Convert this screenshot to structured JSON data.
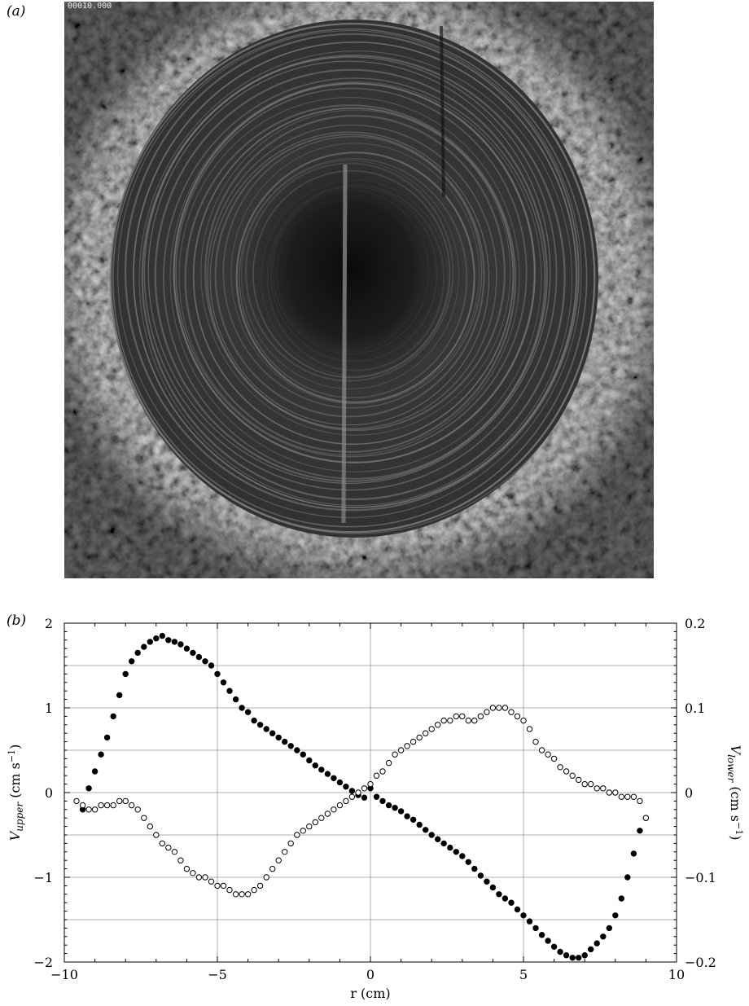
{
  "figure": {
    "panel_a_label": "(a)",
    "panel_b_label": "(b)",
    "photo_stamp": "00010.000"
  },
  "chart_data": {
    "type": "scatter",
    "title": "",
    "xlabel": "r (cm)",
    "ylabel_left": {
      "base": "V",
      "sub": "upper",
      "unit": " (cm s",
      "sup": "−1",
      "close": ")"
    },
    "ylabel_right": {
      "base": "V",
      "sub": "lower",
      "unit": " (cm s",
      "sup": "−1",
      "close": ")"
    },
    "xlim": [
      -10,
      10
    ],
    "ylim_left": [
      -2,
      2
    ],
    "ylim_right": [
      -0.2,
      0.2
    ],
    "x_ticks": [
      -10,
      -5,
      0,
      5,
      10
    ],
    "x_tick_labels": [
      "−10",
      "−5",
      "0",
      "5",
      "10"
    ],
    "y_left_ticks": [
      -2,
      -1,
      0,
      1,
      2
    ],
    "y_left_tick_labels": [
      "−2",
      "−1",
      "0",
      "1",
      "2"
    ],
    "y_right_ticks": [
      -0.2,
      -0.1,
      0,
      0.1,
      0.2
    ],
    "y_right_tick_labels": [
      "−0.2",
      "−0.1",
      "0",
      "0.1",
      "0.2"
    ],
    "grid": true,
    "series": [
      {
        "marker": "filled-circle",
        "axis": "left",
        "x": [
          -9.4,
          -9.2,
          -9.0,
          -8.8,
          -8.6,
          -8.4,
          -8.2,
          -8.0,
          -7.8,
          -7.6,
          -7.4,
          -7.2,
          -7.0,
          -6.8,
          -6.6,
          -6.4,
          -6.2,
          -6.0,
          -5.8,
          -5.6,
          -5.4,
          -5.2,
          -5.0,
          -4.8,
          -4.6,
          -4.4,
          -4.2,
          -4.0,
          -3.8,
          -3.6,
          -3.4,
          -3.2,
          -3.0,
          -2.8,
          -2.6,
          -2.4,
          -2.2,
          -2.0,
          -1.8,
          -1.6,
          -1.4,
          -1.2,
          -1.0,
          -0.8,
          -0.6,
          -0.4,
          -0.2,
          0.0,
          0.2,
          0.4,
          0.6,
          0.8,
          1.0,
          1.2,
          1.4,
          1.6,
          1.8,
          2.0,
          2.2,
          2.4,
          2.6,
          2.8,
          3.0,
          3.2,
          3.4,
          3.6,
          3.8,
          4.0,
          4.2,
          4.4,
          4.6,
          4.8,
          5.0,
          5.2,
          5.4,
          5.6,
          5.8,
          6.0,
          6.2,
          6.4,
          6.6,
          6.8,
          7.0,
          7.2,
          7.4,
          7.6,
          7.8,
          8.0,
          8.2,
          8.4,
          8.6,
          8.8,
          9.0
        ],
        "y": [
          -0.2,
          0.05,
          0.25,
          0.45,
          0.65,
          0.9,
          1.15,
          1.4,
          1.55,
          1.65,
          1.72,
          1.78,
          1.82,
          1.85,
          1.8,
          1.78,
          1.75,
          1.7,
          1.65,
          1.6,
          1.55,
          1.5,
          1.4,
          1.3,
          1.2,
          1.1,
          1.0,
          0.95,
          0.85,
          0.8,
          0.75,
          0.7,
          0.65,
          0.6,
          0.55,
          0.5,
          0.45,
          0.38,
          0.32,
          0.27,
          0.22,
          0.17,
          0.12,
          0.07,
          0.02,
          -0.03,
          -0.06,
          0.05,
          -0.05,
          -0.1,
          -0.15,
          -0.18,
          -0.22,
          -0.28,
          -0.32,
          -0.38,
          -0.44,
          -0.5,
          -0.55,
          -0.6,
          -0.65,
          -0.7,
          -0.75,
          -0.82,
          -0.9,
          -0.98,
          -1.05,
          -1.12,
          -1.2,
          -1.25,
          -1.3,
          -1.38,
          -1.45,
          -1.52,
          -1.6,
          -1.68,
          -1.75,
          -1.82,
          -1.88,
          -1.92,
          -1.95,
          -1.95,
          -1.92,
          -1.85,
          -1.78,
          -1.7,
          -1.6,
          -1.45,
          -1.25,
          -1.0,
          -0.72,
          -0.45,
          -0.3
        ]
      },
      {
        "marker": "open-circle",
        "axis": "right",
        "x": [
          -9.6,
          -9.4,
          -9.2,
          -9.0,
          -8.8,
          -8.6,
          -8.4,
          -8.2,
          -8.0,
          -7.8,
          -7.6,
          -7.4,
          -7.2,
          -7.0,
          -6.8,
          -6.6,
          -6.4,
          -6.2,
          -6.0,
          -5.8,
          -5.6,
          -5.4,
          -5.2,
          -5.0,
          -4.8,
          -4.6,
          -4.4,
          -4.2,
          -4.0,
          -3.8,
          -3.6,
          -3.4,
          -3.2,
          -3.0,
          -2.8,
          -2.6,
          -2.4,
          -2.2,
          -2.0,
          -1.8,
          -1.6,
          -1.4,
          -1.2,
          -1.0,
          -0.8,
          -0.6,
          -0.4,
          -0.2,
          0.0,
          0.2,
          0.4,
          0.6,
          0.8,
          1.0,
          1.2,
          1.4,
          1.6,
          1.8,
          2.0,
          2.2,
          2.4,
          2.6,
          2.8,
          3.0,
          3.2,
          3.4,
          3.6,
          3.8,
          4.0,
          4.2,
          4.4,
          4.6,
          4.8,
          5.0,
          5.2,
          5.4,
          5.6,
          5.8,
          6.0,
          6.2,
          6.4,
          6.6,
          6.8,
          7.0,
          7.2,
          7.4,
          7.6,
          7.8,
          8.0,
          8.2,
          8.4,
          8.6,
          8.8,
          9.0
        ],
        "y": [
          -0.01,
          -0.015,
          -0.02,
          -0.02,
          -0.015,
          -0.015,
          -0.015,
          -0.01,
          -0.01,
          -0.015,
          -0.02,
          -0.03,
          -0.04,
          -0.05,
          -0.06,
          -0.065,
          -0.07,
          -0.08,
          -0.09,
          -0.095,
          -0.1,
          -0.1,
          -0.105,
          -0.11,
          -0.11,
          -0.115,
          -0.12,
          -0.12,
          -0.12,
          -0.115,
          -0.11,
          -0.1,
          -0.09,
          -0.08,
          -0.07,
          -0.06,
          -0.05,
          -0.045,
          -0.04,
          -0.035,
          -0.03,
          -0.025,
          -0.02,
          -0.015,
          -0.01,
          -0.005,
          0.0,
          0.005,
          0.01,
          0.02,
          0.025,
          0.035,
          0.045,
          0.05,
          0.055,
          0.06,
          0.065,
          0.07,
          0.075,
          0.08,
          0.085,
          0.085,
          0.09,
          0.09,
          0.085,
          0.085,
          0.09,
          0.095,
          0.1,
          0.1,
          0.1,
          0.095,
          0.09,
          0.085,
          0.075,
          0.06,
          0.05,
          0.045,
          0.04,
          0.03,
          0.025,
          0.02,
          0.015,
          0.01,
          0.01,
          0.005,
          0.005,
          0.0,
          0.0,
          -0.005,
          -0.005,
          -0.005,
          -0.01,
          -0.03
        ]
      }
    ]
  }
}
